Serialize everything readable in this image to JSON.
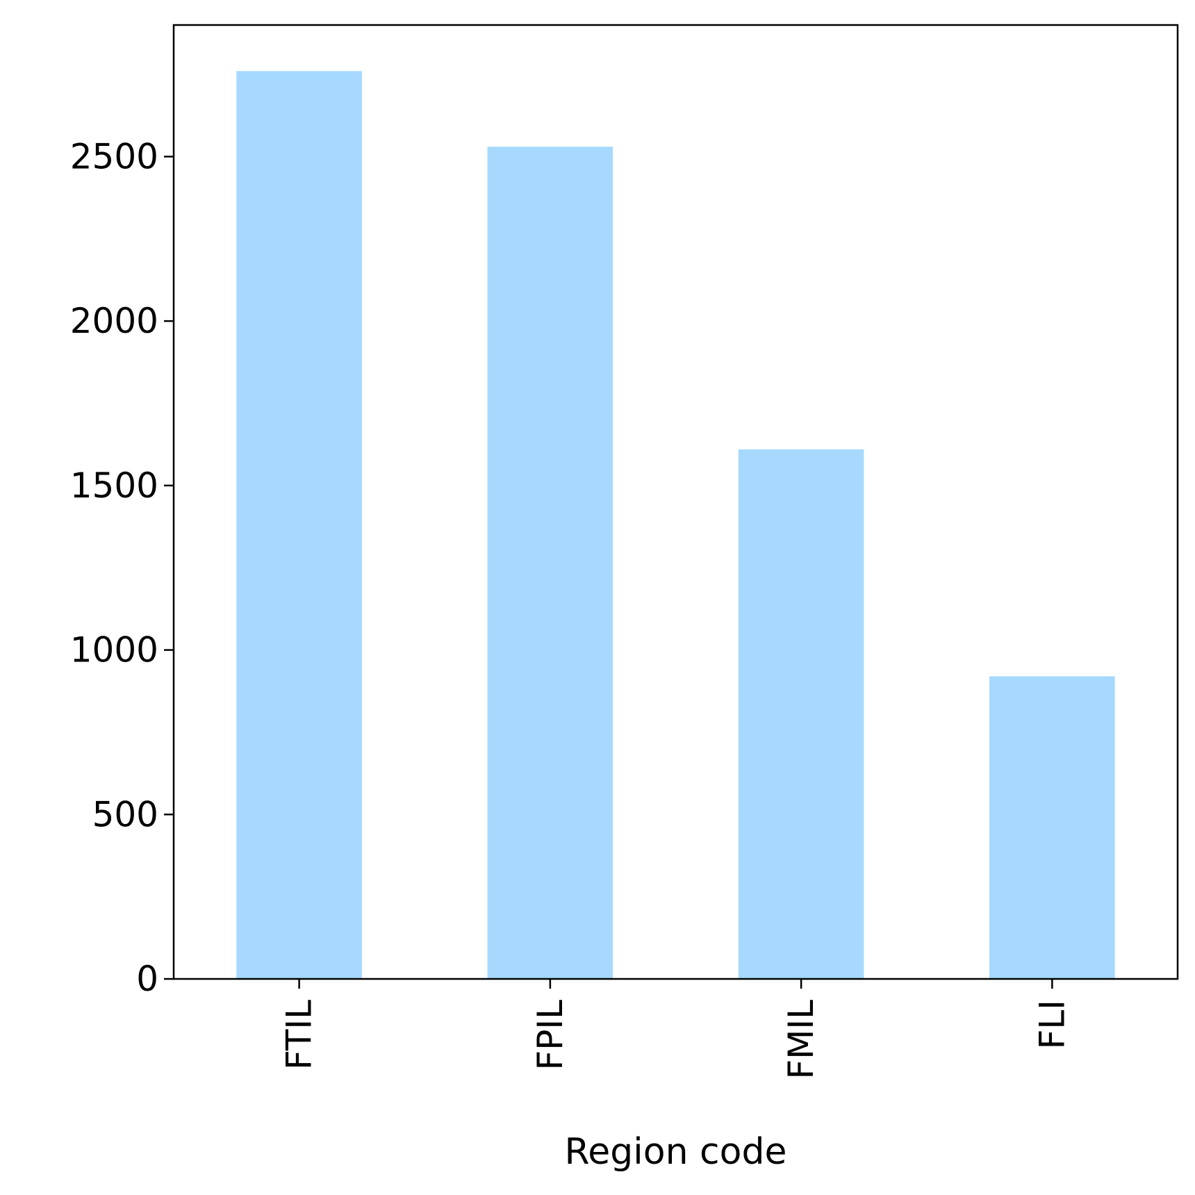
{
  "chart_data": {
    "type": "bar",
    "title": "",
    "xlabel": "Region code",
    "ylabel": "",
    "categories": [
      "FTIL",
      "FPIL",
      "FMIL",
      "FLI"
    ],
    "values": [
      2760,
      2530,
      1610,
      920
    ],
    "ylim": [
      0,
      2900
    ],
    "yticks": [
      0,
      500,
      1000,
      1500,
      2000,
      2500
    ],
    "ytick_labels": [
      "0",
      "500",
      "1000",
      "1500",
      "2000",
      "2500"
    ],
    "grid": false,
    "legend": "none",
    "bar_color": "#a6d9fd"
  }
}
